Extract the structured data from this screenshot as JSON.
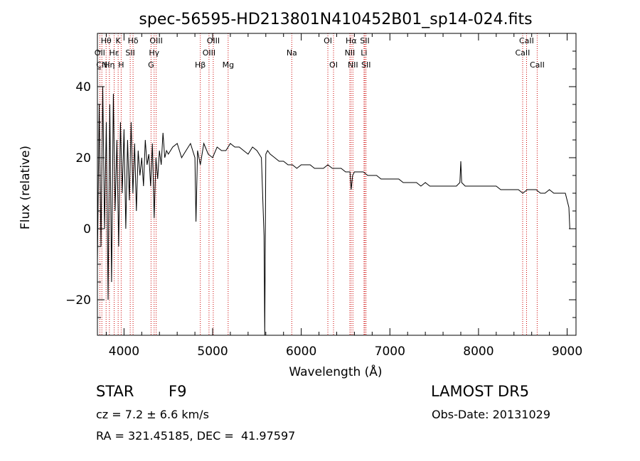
{
  "chart_data": {
    "type": "line",
    "title": "spec-56595-HD213801N410452B01_sp14-024.fits",
    "xlabel": "Wavelength (Å)",
    "ylabel": "Flux (relative)",
    "xlim": [
      3700,
      9100
    ],
    "ylim": [
      -30,
      55
    ],
    "xticks": [
      4000,
      5000,
      6000,
      7000,
      8000,
      9000
    ],
    "yticks": [
      -20,
      0,
      20,
      40
    ],
    "grid": false,
    "line_color": "#000000",
    "marker_color": "#cc0000",
    "series": [
      {
        "x": [
          3700,
          3720,
          3740,
          3760,
          3780,
          3800,
          3820,
          3840,
          3860,
          3880,
          3900,
          3920,
          3940,
          3960,
          3980,
          4000,
          4020,
          4040,
          4060,
          4080,
          4100,
          4120,
          4140,
          4160,
          4180,
          4200,
          4220,
          4240,
          4260,
          4280,
          4300,
          4320,
          4340,
          4360,
          4380,
          4400,
          4420,
          4440,
          4460,
          4480,
          4500,
          4550,
          4600,
          4650,
          4700,
          4750,
          4800,
          4812,
          4830,
          4861,
          4900,
          4950,
          5000,
          5050,
          5100,
          5150,
          5200,
          5250,
          5300,
          5350,
          5400,
          5450,
          5500,
          5550,
          5580,
          5588,
          5600,
          5620,
          5650,
          5700,
          5750,
          5800,
          5850,
          5900,
          5950,
          6000,
          6050,
          6100,
          6150,
          6200,
          6250,
          6300,
          6350,
          6400,
          6450,
          6500,
          6550,
          6563,
          6580,
          6600,
          6650,
          6700,
          6750,
          6800,
          6850,
          6900,
          6950,
          7000,
          7050,
          7100,
          7150,
          7200,
          7250,
          7300,
          7350,
          7400,
          7450,
          7500,
          7550,
          7600,
          7650,
          7700,
          7750,
          7790,
          7800,
          7810,
          7850,
          7900,
          7950,
          8000,
          8050,
          8100,
          8150,
          8200,
          8250,
          8300,
          8350,
          8400,
          8450,
          8500,
          8550,
          8600,
          8650,
          8700,
          8750,
          8800,
          8850,
          8900,
          8950,
          8980,
          9000,
          9020,
          9030
        ],
        "y": [
          -10,
          35,
          -5,
          40,
          0,
          30,
          -20,
          35,
          -15,
          38,
          5,
          25,
          -5,
          30,
          10,
          28,
          0,
          25,
          8,
          30,
          10,
          24,
          5,
          22,
          15,
          20,
          12,
          25,
          18,
          21,
          12,
          24,
          3,
          20,
          14,
          22,
          18,
          27,
          20,
          22,
          21,
          23,
          24,
          20,
          22,
          24,
          20,
          2,
          22,
          18,
          24,
          21,
          20,
          23,
          22,
          22,
          24,
          23,
          23,
          22,
          21,
          23,
          22,
          20,
          -2,
          -35,
          21,
          22,
          21,
          20,
          19,
          19,
          18,
          18,
          17,
          18,
          18,
          18,
          17,
          17,
          17,
          18,
          17,
          17,
          17,
          16,
          16,
          11,
          15,
          16,
          16,
          16,
          15,
          15,
          15,
          14,
          14,
          14,
          14,
          14,
          13,
          13,
          13,
          13,
          12,
          13,
          12,
          12,
          12,
          12,
          12,
          12,
          12,
          13,
          19,
          13,
          12,
          12,
          12,
          12,
          12,
          12,
          12,
          12,
          11,
          11,
          11,
          11,
          11,
          10,
          11,
          11,
          11,
          10,
          10,
          11,
          10,
          10,
          10,
          10,
          8,
          6,
          0
        ]
      }
    ],
    "line_labels": [
      {
        "name": "Hθ",
        "wl": 3798,
        "row": 1
      },
      {
        "name": "Hη",
        "wl": 3835,
        "row": 3
      },
      {
        "name": "Hε",
        "wl": 3889,
        "row": 2
      },
      {
        "name": "OII",
        "wl": 3727,
        "row": 2
      },
      {
        "name": "CN",
        "wl": 3750,
        "row": 3
      },
      {
        "name": "K",
        "wl": 3934,
        "row": 1
      },
      {
        "name": "H",
        "wl": 3968,
        "row": 3
      },
      {
        "name": "SII",
        "wl": 4070,
        "row": 2
      },
      {
        "name": "Hδ",
        "wl": 4102,
        "row": 1
      },
      {
        "name": "G",
        "wl": 4305,
        "row": 3
      },
      {
        "name": "Hγ",
        "wl": 4340,
        "row": 2
      },
      {
        "name": "OIII",
        "wl": 4363,
        "row": 1
      },
      {
        "name": "Hβ",
        "wl": 4861,
        "row": 3
      },
      {
        "name": "OIII",
        "wl": 4959,
        "row": 2
      },
      {
        "name": "OIII",
        "wl": 5007,
        "row": 1
      },
      {
        "name": "Mg",
        "wl": 5175,
        "row": 3
      },
      {
        "name": "Na",
        "wl": 5893,
        "row": 2
      },
      {
        "name": "OI",
        "wl": 6300,
        "row": 1
      },
      {
        "name": "OI",
        "wl": 6364,
        "row": 3
      },
      {
        "name": "NII",
        "wl": 6548,
        "row": 2
      },
      {
        "name": "Hα",
        "wl": 6563,
        "row": 1
      },
      {
        "name": "NII",
        "wl": 6583,
        "row": 3
      },
      {
        "name": "Li",
        "wl": 6708,
        "row": 2
      },
      {
        "name": "SII",
        "wl": 6717,
        "row": 1
      },
      {
        "name": "SII",
        "wl": 6731,
        "row": 3
      },
      {
        "name": "CaII",
        "wl": 8498,
        "row": 2
      },
      {
        "name": "CaII",
        "wl": 8542,
        "row": 1
      },
      {
        "name": "CaII",
        "wl": 8662,
        "row": 3
      }
    ]
  },
  "info": {
    "object_type": "STAR",
    "subclass": "F9",
    "survey": "LAMOST DR5",
    "cz": "cz = 7.2 ± 6.6 km/s",
    "obs_date": "Obs-Date: 20131029",
    "coords": "RA = 321.45185, DEC =  41.97597"
  }
}
